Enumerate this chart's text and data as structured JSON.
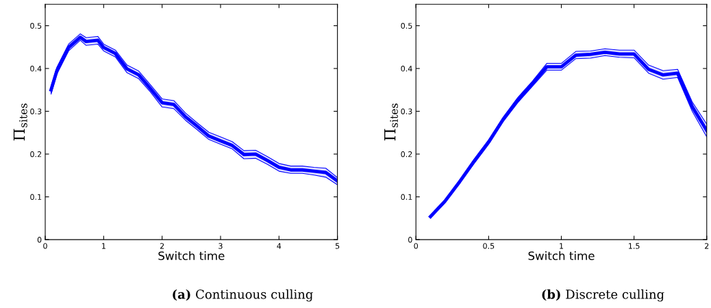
{
  "chart_data": [
    {
      "type": "line",
      "xlabel": "Switch time",
      "ylabel": "Π$_{sites}$",
      "xlim": [
        0,
        5
      ],
      "ylim": [
        0,
        0.55
      ],
      "xticks": [
        0,
        1,
        2,
        3,
        4,
        5
      ],
      "yticks": [
        0,
        0.1,
        0.2,
        0.3,
        0.4,
        0.5
      ],
      "annotations": [
        "(a) Continuous culling"
      ],
      "x": [
        0.1,
        0.2,
        0.4,
        0.6,
        0.7,
        0.9,
        1.0,
        1.2,
        1.4,
        1.6,
        1.8,
        2.0,
        2.2,
        2.4,
        2.6,
        2.8,
        3.0,
        3.2,
        3.4,
        3.6,
        3.8,
        4.0,
        4.2,
        4.4,
        4.6,
        4.8,
        5.0
      ],
      "series": [
        {
          "color": "#0000ff",
          "values": [
            0.35,
            0.395,
            0.449,
            0.473,
            0.463,
            0.466,
            0.449,
            0.435,
            0.399,
            0.385,
            0.353,
            0.32,
            0.316,
            0.287,
            0.265,
            0.242,
            0.231,
            0.22,
            0.199,
            0.2,
            0.185,
            0.169,
            0.163,
            0.163,
            0.16,
            0.157,
            0.137
          ],
          "lower": [
            0.34,
            0.387,
            0.441,
            0.466,
            0.454,
            0.457,
            0.441,
            0.427,
            0.39,
            0.376,
            0.345,
            0.31,
            0.306,
            0.279,
            0.257,
            0.234,
            0.223,
            0.212,
            0.189,
            0.19,
            0.176,
            0.16,
            0.155,
            0.155,
            0.151,
            0.146,
            0.128
          ],
          "upper": [
            0.358,
            0.403,
            0.457,
            0.481,
            0.472,
            0.475,
            0.457,
            0.443,
            0.408,
            0.394,
            0.362,
            0.329,
            0.325,
            0.296,
            0.273,
            0.251,
            0.24,
            0.229,
            0.208,
            0.209,
            0.194,
            0.178,
            0.172,
            0.172,
            0.169,
            0.167,
            0.145
          ]
        }
      ]
    },
    {
      "type": "line",
      "xlabel": "Switch time",
      "ylabel": "Π$_{sites}$",
      "xlim": [
        0,
        2
      ],
      "ylim": [
        0,
        0.55
      ],
      "xticks": [
        0,
        0.5,
        1,
        1.5,
        2
      ],
      "yticks": [
        0,
        0.1,
        0.2,
        0.3,
        0.4,
        0.5
      ],
      "annotations": [
        "(b) Discrete culling"
      ],
      "x": [
        0.1,
        0.2,
        0.3,
        0.4,
        0.5,
        0.6,
        0.7,
        0.8,
        0.9,
        1.0,
        1.1,
        1.2,
        1.3,
        1.4,
        1.5,
        1.6,
        1.7,
        1.8,
        1.9,
        2.0
      ],
      "series": [
        {
          "color": "#0000ff",
          "values": [
            0.054,
            0.09,
            0.135,
            0.183,
            0.228,
            0.281,
            0.326,
            0.364,
            0.404,
            0.404,
            0.431,
            0.433,
            0.438,
            0.434,
            0.434,
            0.398,
            0.385,
            0.389,
            0.311,
            0.255
          ],
          "lower": [
            0.05,
            0.086,
            0.131,
            0.178,
            0.223,
            0.276,
            0.32,
            0.358,
            0.396,
            0.396,
            0.423,
            0.424,
            0.43,
            0.426,
            0.425,
            0.389,
            0.375,
            0.379,
            0.3,
            0.24
          ],
          "upper": [
            0.057,
            0.093,
            0.139,
            0.188,
            0.233,
            0.286,
            0.332,
            0.37,
            0.412,
            0.412,
            0.44,
            0.441,
            0.446,
            0.443,
            0.443,
            0.408,
            0.395,
            0.398,
            0.322,
            0.27
          ]
        }
      ]
    }
  ]
}
